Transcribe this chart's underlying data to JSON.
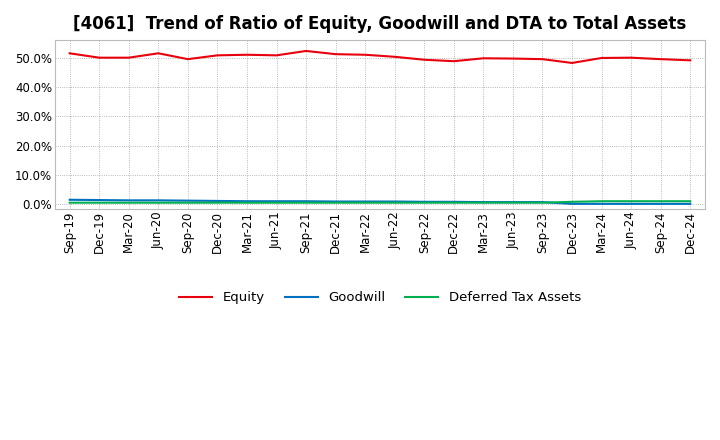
{
  "title": "[4061]  Trend of Ratio of Equity, Goodwill and DTA to Total Assets",
  "x_labels": [
    "Sep-19",
    "Dec-19",
    "Mar-20",
    "Jun-20",
    "Sep-20",
    "Dec-20",
    "Mar-21",
    "Jun-21",
    "Sep-21",
    "Dec-21",
    "Mar-22",
    "Jun-22",
    "Sep-22",
    "Dec-22",
    "Mar-23",
    "Jun-23",
    "Sep-23",
    "Dec-23",
    "Mar-24",
    "Jun-24",
    "Sep-24",
    "Dec-24"
  ],
  "equity": [
    51.5,
    50.0,
    50.0,
    51.5,
    49.5,
    50.8,
    51.0,
    50.8,
    52.3,
    51.2,
    51.0,
    50.3,
    49.3,
    48.8,
    49.8,
    49.7,
    49.5,
    48.2,
    49.9,
    50.0,
    49.5,
    49.1
  ],
  "goodwill": [
    1.5,
    1.4,
    1.3,
    1.3,
    1.2,
    1.1,
    1.0,
    1.0,
    1.0,
    0.9,
    0.9,
    0.9,
    0.8,
    0.8,
    0.7,
    0.7,
    0.7,
    0.1,
    0.1,
    0.1,
    0.1,
    0.1
  ],
  "dta": [
    0.5,
    0.5,
    0.5,
    0.5,
    0.5,
    0.5,
    0.5,
    0.5,
    0.5,
    0.5,
    0.5,
    0.5,
    0.5,
    0.5,
    0.5,
    0.5,
    0.5,
    0.8,
    1.0,
    1.0,
    1.0,
    1.0
  ],
  "equity_color": "#e8000d",
  "goodwill_color": "#0070c0",
  "dta_color": "#00b050",
  "background_color": "#ffffff",
  "plot_bg_color": "#ffffff",
  "grid_color": "#999999",
  "ylim": [
    -1.5,
    56.0
  ],
  "yticks": [
    0.0,
    10.0,
    20.0,
    30.0,
    40.0,
    50.0
  ],
  "legend_labels": [
    "Equity",
    "Goodwill",
    "Deferred Tax Assets"
  ],
  "title_fontsize": 12,
  "axis_fontsize": 8.5,
  "legend_fontsize": 9.5
}
